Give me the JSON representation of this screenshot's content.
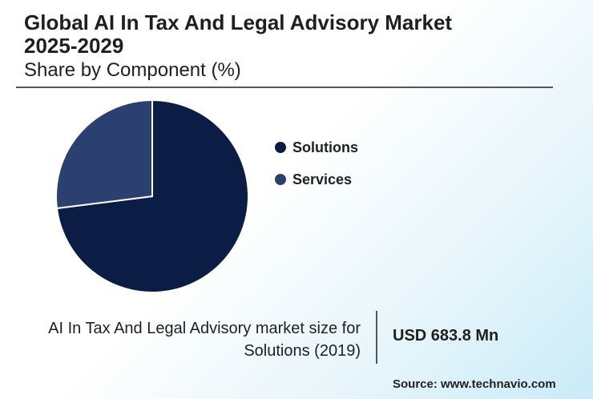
{
  "header": {
    "title_line1": "Global AI In Tax And Legal Advisory Market",
    "title_line2": "2025-2029",
    "subtitle": "Share by Component (%)"
  },
  "chart_data": {
    "type": "pie",
    "categories": [
      "Solutions",
      "Services"
    ],
    "values": [
      73,
      27
    ],
    "colors": [
      "#0b1c45",
      "#2b3f70"
    ],
    "legend_position": "right"
  },
  "footer": {
    "caption_line1": "AI In Tax And Legal Advisory market size for",
    "caption_line2": "Solutions (2019)",
    "value": "USD 683.8 Mn",
    "source": "Source: www.technavio.com"
  }
}
